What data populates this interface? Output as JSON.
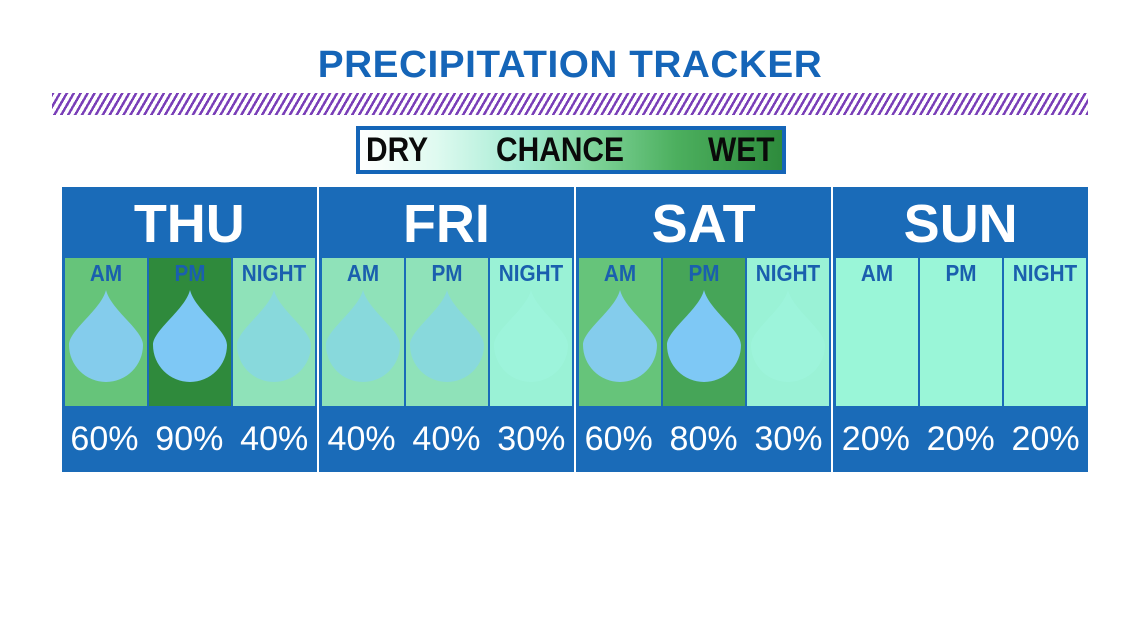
{
  "title": "PRECIPITATION TRACKER",
  "legend": {
    "dry": "DRY",
    "chance": "CHANCE",
    "wet": "WET"
  },
  "colors": {
    "brand_blue": "#1a6bb8",
    "title_blue": "#1565b8",
    "stripe_purple": "#7a3fb8",
    "drop_blue": "#7ec8f5"
  },
  "days": [
    {
      "name": "THU",
      "slots": [
        {
          "label": "AM",
          "pct": "60%",
          "chance": 0.6
        },
        {
          "label": "PM",
          "pct": "90%",
          "chance": 0.9
        },
        {
          "label": "NIGHT",
          "pct": "40%",
          "chance": 0.4
        }
      ]
    },
    {
      "name": "FRI",
      "slots": [
        {
          "label": "AM",
          "pct": "40%",
          "chance": 0.4
        },
        {
          "label": "PM",
          "pct": "40%",
          "chance": 0.4
        },
        {
          "label": "NIGHT",
          "pct": "30%",
          "chance": 0.3
        }
      ]
    },
    {
      "name": "SAT",
      "slots": [
        {
          "label": "AM",
          "pct": "60%",
          "chance": 0.6
        },
        {
          "label": "PM",
          "pct": "80%",
          "chance": 0.8
        },
        {
          "label": "NIGHT",
          "pct": "30%",
          "chance": 0.3
        }
      ]
    },
    {
      "name": "SUN",
      "slots": [
        {
          "label": "AM",
          "pct": "20%",
          "chance": 0.2
        },
        {
          "label": "PM",
          "pct": "20%",
          "chance": 0.2
        },
        {
          "label": "NIGHT",
          "pct": "20%",
          "chance": 0.2
        }
      ]
    }
  ]
}
